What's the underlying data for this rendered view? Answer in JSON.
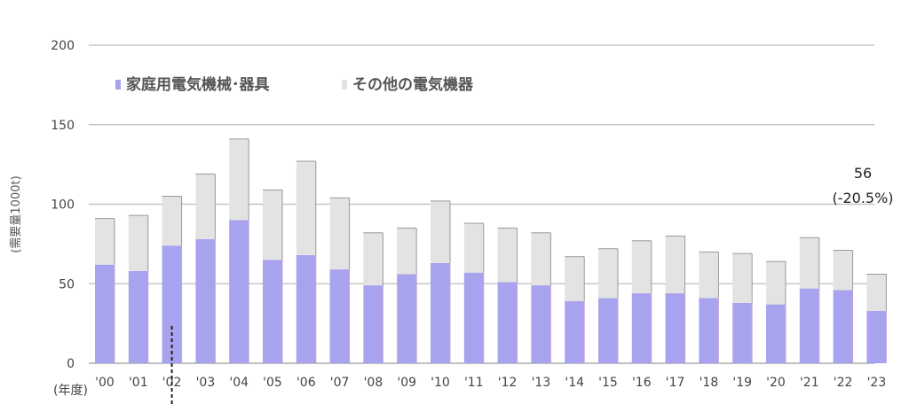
{
  "chart_data": {
    "type": "bar",
    "stacked": true,
    "ylabel": "(需要量1000t)",
    "xlabel": "(年度)",
    "ylim": [
      0,
      200
    ],
    "yticks": [
      0,
      50,
      100,
      150,
      200
    ],
    "grid": true,
    "legend_position": "top-left",
    "categories": [
      "'00",
      "'01",
      "'02",
      "'03",
      "'04",
      "'05",
      "'06",
      "'07",
      "'08",
      "'09",
      "'10",
      "'11",
      "'12",
      "'13",
      "'14",
      "'15",
      "'16",
      "'17",
      "'18",
      "'19",
      "'20",
      "'21",
      "'22",
      "'23"
    ],
    "series": [
      {
        "name": "家庭用電気機械･器具",
        "color": "#a8a3ee",
        "values": [
          62,
          58,
          74,
          78,
          90,
          65,
          68,
          59,
          49,
          56,
          63,
          57,
          51,
          49,
          39,
          41,
          44,
          44,
          41,
          38,
          37,
          47,
          46,
          33
        ]
      },
      {
        "name": "その他の電気機器",
        "color": "#e3e3e3",
        "values": [
          29,
          35,
          31,
          41,
          51,
          44,
          59,
          45,
          33,
          29,
          39,
          31,
          34,
          33,
          28,
          31,
          33,
          36,
          29,
          31,
          27,
          32,
          25,
          23
        ]
      }
    ],
    "annotations": [
      {
        "category": "'23",
        "lines": [
          "56",
          "(-20.5%)"
        ]
      }
    ],
    "marker": {
      "type": "dashed-vertical-line",
      "category": "'02"
    }
  }
}
